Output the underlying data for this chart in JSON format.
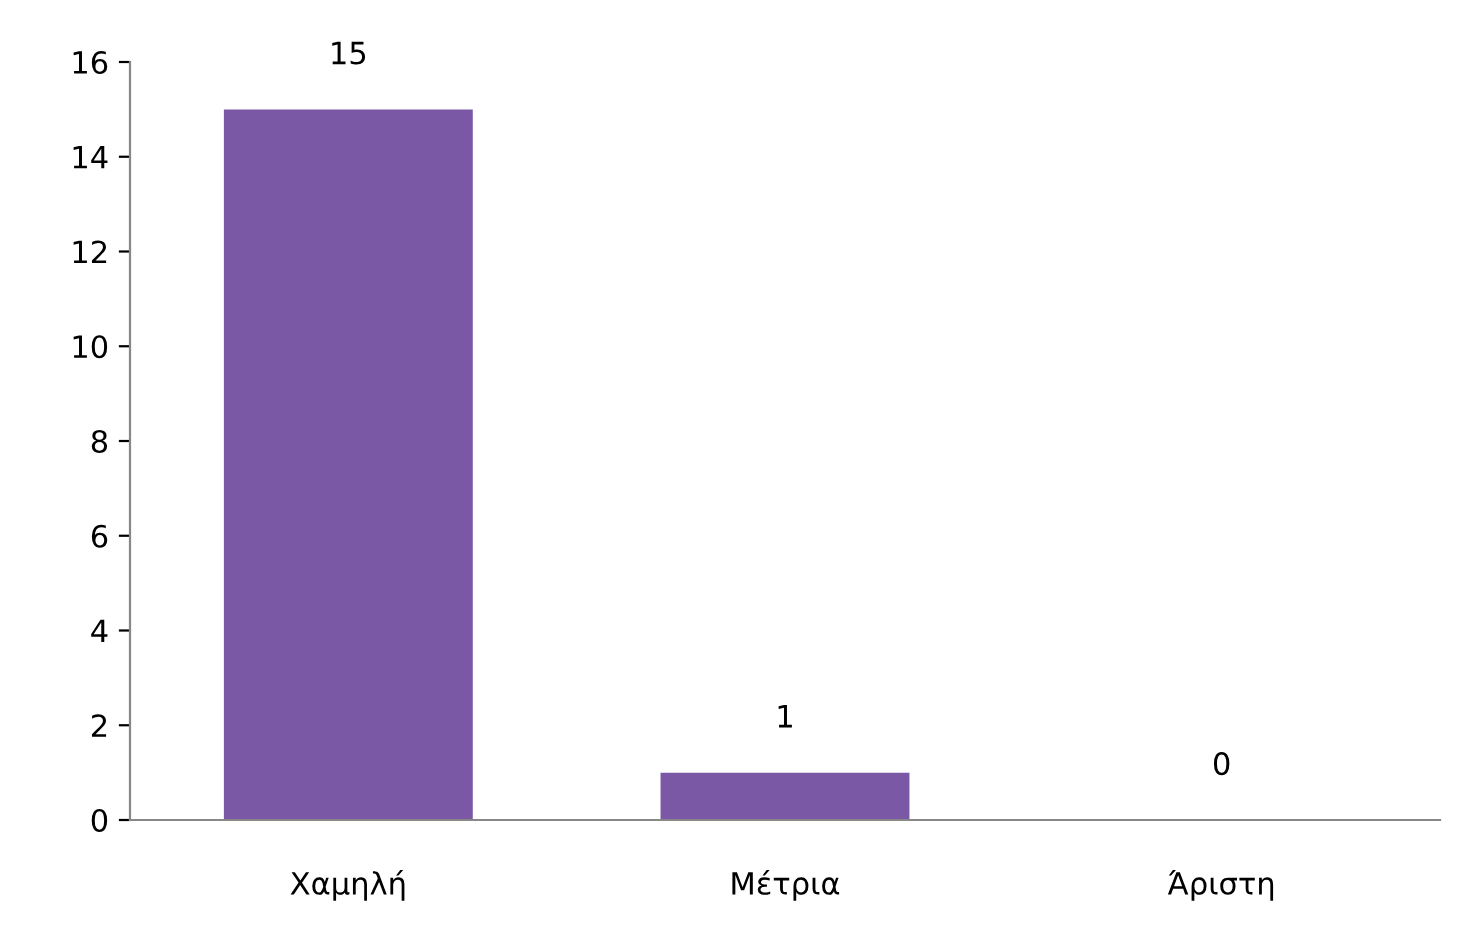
{
  "chart_data": {
    "type": "bar",
    "categories": [
      "Χαμηλή",
      "Μέτρια",
      "Άριστη"
    ],
    "values": [
      15,
      1,
      0
    ],
    "color": "#7a58a6",
    "ylim": [
      0,
      16
    ],
    "yticks": [
      0,
      2,
      4,
      6,
      8,
      10,
      12,
      14,
      16
    ],
    "grid": false,
    "data_labels": true
  }
}
